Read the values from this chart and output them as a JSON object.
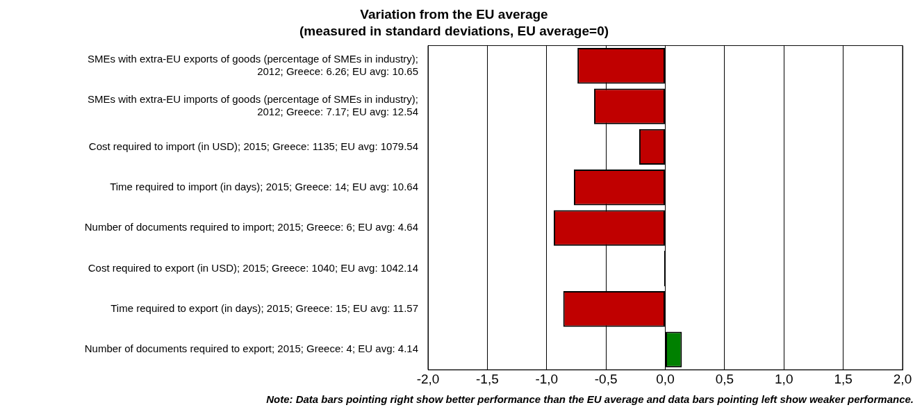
{
  "chart_data": {
    "type": "bar",
    "orientation": "horizontal",
    "title": "Variation from the EU average",
    "subtitle": "(measured in standard deviations, EU average=0)",
    "categories": [
      "SMEs with extra-EU exports of goods (percentage of SMEs in industry); 2012; Greece: 6.26; EU avg: 10.65",
      "SMEs with extra-EU imports of goods (percentage of SMEs in industry); 2012; Greece: 7.17; EU avg: 12.54",
      "Cost required to import (in USD); 2015; Greece: 1135; EU avg: 1079.54",
      "Time required to import (in days); 2015; Greece: 14; EU avg: 10.64",
      "Number of documents required to import; 2015; Greece: 6; EU avg: 4.64",
      "Cost required to export (in USD); 2015; Greece: 1040; EU avg: 1042.14",
      "Time required to export (in days); 2015; Greece: 15; EU avg: 11.57",
      "Number of documents required to export; 2015; Greece: 4; EU avg: 4.14"
    ],
    "values": [
      -0.74,
      -0.6,
      -0.22,
      -0.77,
      -0.94,
      -0.01,
      -0.86,
      0.14
    ],
    "colors": [
      "#c00000",
      "#c00000",
      "#c00000",
      "#c00000",
      "#c00000",
      "#000000",
      "#c00000",
      "#008000"
    ],
    "xlim": [
      -2,
      2
    ],
    "xticks": [
      {
        "value": -2,
        "label": "-2,0"
      },
      {
        "value": -1.5,
        "label": "-1,5"
      },
      {
        "value": -1,
        "label": "-1,0"
      },
      {
        "value": -0.5,
        "label": "-0,5"
      },
      {
        "value": 0,
        "label": "0,0"
      },
      {
        "value": 0.5,
        "label": "0,5"
      },
      {
        "value": 1,
        "label": "1,0"
      },
      {
        "value": 1.5,
        "label": "1,5"
      },
      {
        "value": 2,
        "label": "2,0"
      }
    ],
    "grid": "x",
    "legend": false,
    "annotations": [
      "Note: Data bars pointing right show better performance than the EU average and data bars pointing left show weaker performance."
    ]
  }
}
